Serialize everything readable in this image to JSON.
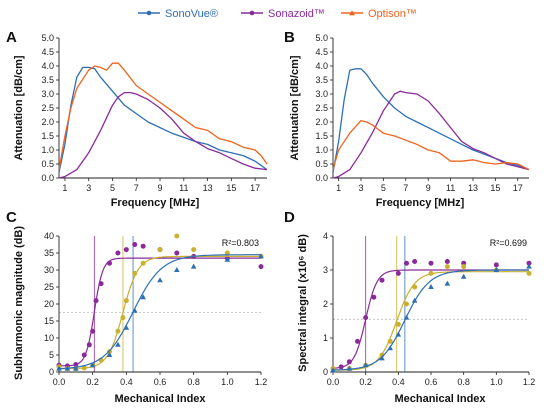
{
  "legend": {
    "items": [
      {
        "label": "SonoVue®",
        "color": "#2e6fb3",
        "marker": "circle"
      },
      {
        "label": "Sonazoid™",
        "color": "#8a2a9a",
        "marker": "circle"
      },
      {
        "label": "Optison™",
        "color": "#f0641e",
        "marker": "triangle"
      }
    ]
  },
  "colors": {
    "sonovue": "#2e6fb3",
    "sonazoid": "#8a2a9a",
    "optison": "#f0641e",
    "optison_scatter": "#c8b030"
  },
  "chart_data": [
    {
      "panel": "A",
      "type": "line",
      "xlabel": "Frequency [MHz]",
      "ylabel": "Attenuation [dB/cm]",
      "xlim": [
        0.5,
        18
      ],
      "ylim": [
        0,
        5
      ],
      "xticks": [
        1,
        3,
        5,
        7,
        9,
        11,
        13,
        15,
        17
      ],
      "yticks": [
        0.0,
        0.5,
        1.0,
        1.5,
        2.0,
        2.5,
        3.0,
        3.5,
        4.0,
        4.5,
        5.0
      ],
      "ytick_labels": [
        "0.0",
        "0.5",
        "1.0",
        "1.5",
        "2.0",
        "2.5",
        "3.0",
        "3.5",
        "4.0",
        "4.5",
        "5.0"
      ],
      "series": [
        {
          "name": "SonoVue®",
          "color": "#2e6fb3",
          "x": [
            0.5,
            1,
            1.5,
            2,
            2.5,
            3,
            3.5,
            4,
            5,
            6,
            7,
            8,
            9,
            10,
            11,
            12,
            13,
            14,
            15,
            16,
            17,
            18
          ],
          "y": [
            0.2,
            1.2,
            2.6,
            3.6,
            3.95,
            3.95,
            3.9,
            3.6,
            3.1,
            2.6,
            2.3,
            2.0,
            1.8,
            1.6,
            1.45,
            1.3,
            1.2,
            1.0,
            0.9,
            0.8,
            0.6,
            0.3
          ]
        },
        {
          "name": "Sonazoid™",
          "color": "#8a2a9a",
          "x": [
            0.5,
            1,
            2,
            3,
            4,
            5,
            5.5,
            6,
            6.5,
            7,
            8,
            9,
            10,
            11,
            12,
            13,
            14,
            15,
            16,
            17,
            18
          ],
          "y": [
            0.0,
            0.05,
            0.3,
            0.9,
            1.7,
            2.6,
            2.9,
            3.05,
            3.05,
            3.0,
            2.8,
            2.5,
            2.1,
            1.6,
            1.3,
            1.05,
            0.9,
            0.7,
            0.5,
            0.35,
            0.3
          ]
        },
        {
          "name": "Optison™",
          "color": "#f0641e",
          "x": [
            0.5,
            1,
            1.5,
            2,
            3,
            3.5,
            4,
            4.5,
            5,
            5.5,
            6,
            7,
            8,
            9,
            10,
            11,
            12,
            13,
            14,
            15,
            16,
            17,
            17.5,
            18
          ],
          "y": [
            0.3,
            1.5,
            2.5,
            3.2,
            3.85,
            4.0,
            3.95,
            3.85,
            4.1,
            4.1,
            3.85,
            3.3,
            3.0,
            2.7,
            2.4,
            2.1,
            1.8,
            1.7,
            1.4,
            1.3,
            1.1,
            1.0,
            0.8,
            0.5
          ]
        }
      ]
    },
    {
      "panel": "B",
      "type": "line",
      "xlabel": "Frequency [MHz]",
      "ylabel": "Attenuation [dB/cm]",
      "xlim": [
        0.5,
        18
      ],
      "ylim": [
        0,
        5
      ],
      "xticks": [
        1,
        3,
        5,
        7,
        9,
        11,
        13,
        15,
        17
      ],
      "yticks": [
        0.0,
        0.5,
        1.0,
        1.5,
        2.0,
        2.5,
        3.0,
        3.5,
        4.0,
        4.5,
        5.0
      ],
      "ytick_labels": [
        "0.0",
        "0.5",
        "1.0",
        "1.5",
        "2.0",
        "2.5",
        "3.0",
        "3.5",
        "4.0",
        "4.5",
        "5.0"
      ],
      "series": [
        {
          "name": "SonoVue®",
          "color": "#2e6fb3",
          "x": [
            0.5,
            1,
            1.5,
            2,
            2.5,
            3,
            3.5,
            4,
            5,
            6,
            7,
            8,
            9,
            10,
            11,
            12,
            13,
            14,
            15,
            16,
            17,
            18
          ],
          "y": [
            0.2,
            1.3,
            2.8,
            3.85,
            3.9,
            3.9,
            3.7,
            3.4,
            2.9,
            2.5,
            2.2,
            2.0,
            1.8,
            1.6,
            1.4,
            1.2,
            1.0,
            0.85,
            0.7,
            0.55,
            0.45,
            0.3
          ]
        },
        {
          "name": "Sonazoid™",
          "color": "#8a2a9a",
          "x": [
            0.5,
            1,
            2,
            3,
            4,
            5,
            6,
            6.5,
            7,
            8,
            9,
            10,
            11,
            12,
            13,
            14,
            15,
            16,
            17,
            18
          ],
          "y": [
            0.0,
            0.05,
            0.3,
            0.9,
            1.6,
            2.4,
            3.0,
            3.1,
            3.05,
            3.0,
            2.75,
            2.3,
            1.8,
            1.3,
            1.05,
            0.9,
            0.7,
            0.5,
            0.4,
            0.3
          ]
        },
        {
          "name": "Optison™",
          "color": "#f0641e",
          "x": [
            0.5,
            1,
            2,
            3,
            3.5,
            4,
            5,
            6,
            7,
            8,
            9,
            10,
            11,
            12,
            13,
            14,
            15,
            16,
            17,
            18
          ],
          "y": [
            0.3,
            1.0,
            1.6,
            2.05,
            2.0,
            1.9,
            1.6,
            1.5,
            1.35,
            1.2,
            1.0,
            0.9,
            0.6,
            0.6,
            0.65,
            0.55,
            0.5,
            0.55,
            0.5,
            0.3
          ]
        }
      ]
    },
    {
      "panel": "C",
      "type": "scatter",
      "xlabel": "Mechanical Index",
      "ylabel": "Subharmonic magnitude (dB)",
      "xlim": [
        0,
        1.2
      ],
      "ylim": [
        0,
        40
      ],
      "xticks": [
        0,
        0.2,
        0.4,
        0.6,
        0.8,
        1.0,
        1.2
      ],
      "xtick_labels": [
        "0.0",
        "0.2",
        "0.4",
        "0.6",
        "0.8",
        "1.0",
        "1.2"
      ],
      "yticks": [
        0,
        5,
        10,
        15,
        20,
        25,
        30,
        35,
        40
      ],
      "ytick_labels": [
        "0",
        "5",
        "10",
        "15",
        "20",
        "25",
        "30",
        "35",
        "40"
      ],
      "annotation": "R²=0.803",
      "hline": 17.5,
      "vlines": [
        {
          "x": 0.21,
          "color": "#8a2a9a"
        },
        {
          "x": 0.38,
          "color": "#c8b030"
        },
        {
          "x": 0.44,
          "color": "#2e6fb3"
        }
      ],
      "series": [
        {
          "name": "Sonazoid™",
          "color": "#8a2a9a",
          "marker": "circle",
          "x": [
            0.0,
            0.05,
            0.1,
            0.15,
            0.18,
            0.2,
            0.22,
            0.25,
            0.3,
            0.35,
            0.4,
            0.45,
            0.5,
            0.6,
            0.7,
            0.8,
            1.0,
            1.2
          ],
          "y": [
            2.0,
            1.8,
            2.2,
            5.0,
            8.0,
            12.0,
            21.0,
            26.0,
            32.0,
            35.0,
            36.0,
            37.5,
            37.0,
            36.0,
            35.0,
            34.0,
            33.5,
            31.0
          ],
          "fit": {
            "top": 33.5,
            "bottom": 1.8,
            "x50": 0.21,
            "slope": 0.025
          }
        },
        {
          "name": "Optison™",
          "color": "#c8b030",
          "marker": "circle",
          "x": [
            0.0,
            0.05,
            0.1,
            0.15,
            0.2,
            0.25,
            0.3,
            0.35,
            0.38,
            0.4,
            0.45,
            0.5,
            0.6,
            0.7,
            0.8,
            1.0,
            1.2
          ],
          "y": [
            1.5,
            1.0,
            1.0,
            1.2,
            2.0,
            3.5,
            6.0,
            12.0,
            16.0,
            21.0,
            29.0,
            32.0,
            36.0,
            40.0,
            36.0,
            35.0,
            34.0
          ],
          "fit": {
            "top": 34.0,
            "bottom": 1.0,
            "x50": 0.38,
            "slope": 0.045
          }
        },
        {
          "name": "SonoVue®",
          "color": "#2e6fb3",
          "marker": "triangle",
          "x": [
            0.0,
            0.05,
            0.1,
            0.2,
            0.3,
            0.35,
            0.4,
            0.45,
            0.5,
            0.6,
            0.7,
            0.8,
            1.0,
            1.2
          ],
          "y": [
            1.0,
            1.0,
            1.0,
            2.0,
            5.0,
            8.0,
            13.0,
            18.0,
            22.0,
            27.0,
            30.0,
            31.0,
            33.0,
            34.0
          ],
          "fit": {
            "top": 34.5,
            "bottom": 0.8,
            "x50": 0.44,
            "slope": 0.085
          }
        }
      ]
    },
    {
      "panel": "D",
      "type": "scatter",
      "xlabel": "Mechanical Index",
      "ylabel": "Spectral integral (x10⁶ dB)",
      "xlim": [
        0,
        1.2
      ],
      "ylim": [
        0,
        4
      ],
      "xticks": [
        0,
        0.2,
        0.4,
        0.6,
        0.8,
        1.0,
        1.2
      ],
      "xtick_labels": [
        "0.0",
        "0.2",
        "0.4",
        "0.6",
        "0.8",
        "1.0",
        "1.2"
      ],
      "yticks": [
        0,
        1,
        2,
        3,
        4
      ],
      "ytick_labels": [
        "0",
        "1",
        "2",
        "3",
        "4"
      ],
      "annotation": "R²=0.699",
      "hline": 1.55,
      "vlines": [
        {
          "x": 0.2,
          "color": "#8a2a9a"
        },
        {
          "x": 0.39,
          "color": "#c8b030"
        },
        {
          "x": 0.44,
          "color": "#2e6fb3"
        }
      ],
      "series": [
        {
          "name": "Sonazoid™",
          "color": "#8a2a9a",
          "marker": "circle",
          "x": [
            0.0,
            0.05,
            0.1,
            0.15,
            0.2,
            0.25,
            0.3,
            0.4,
            0.45,
            0.5,
            0.6,
            0.7,
            0.8,
            1.0,
            1.2
          ],
          "y": [
            0.1,
            0.15,
            0.3,
            0.9,
            1.6,
            2.2,
            2.7,
            2.9,
            3.2,
            3.25,
            3.2,
            3.25,
            3.2,
            3.15,
            3.2
          ],
          "fit": {
            "top": 3.0,
            "bottom": 0.1,
            "x50": 0.2,
            "slope": 0.035
          }
        },
        {
          "name": "Optison™",
          "color": "#c8b030",
          "marker": "circle",
          "x": [
            0.0,
            0.1,
            0.2,
            0.3,
            0.35,
            0.4,
            0.45,
            0.5,
            0.6,
            0.7,
            0.8,
            1.0,
            1.2
          ],
          "y": [
            0.1,
            0.1,
            0.2,
            0.5,
            0.9,
            1.4,
            2.0,
            2.5,
            2.9,
            3.1,
            3.1,
            3.0,
            2.9
          ],
          "fit": {
            "top": 2.95,
            "bottom": 0.05,
            "x50": 0.39,
            "slope": 0.055
          }
        },
        {
          "name": "SonoVue®",
          "color": "#2e6fb3",
          "marker": "triangle",
          "x": [
            0.0,
            0.1,
            0.2,
            0.3,
            0.35,
            0.4,
            0.45,
            0.5,
            0.6,
            0.7,
            0.8,
            1.0,
            1.2
          ],
          "y": [
            0.05,
            0.1,
            0.2,
            0.4,
            0.7,
            1.1,
            1.6,
            2.1,
            2.5,
            2.6,
            2.8,
            3.0,
            3.1
          ],
          "fit": {
            "top": 3.0,
            "bottom": 0.05,
            "x50": 0.44,
            "slope": 0.075
          }
        }
      ]
    }
  ]
}
